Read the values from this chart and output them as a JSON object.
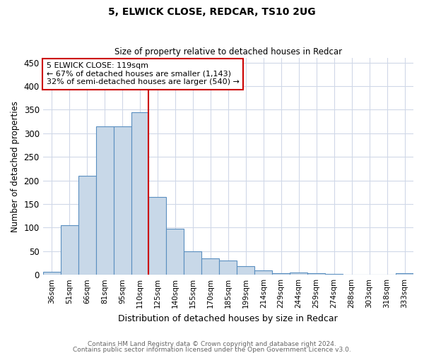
{
  "title1": "5, ELWICK CLOSE, REDCAR, TS10 2UG",
  "title2": "Size of property relative to detached houses in Redcar",
  "xlabel": "Distribution of detached houses by size in Redcar",
  "ylabel": "Number of detached properties",
  "categories": [
    "36sqm",
    "51sqm",
    "66sqm",
    "81sqm",
    "95sqm",
    "110sqm",
    "125sqm",
    "140sqm",
    "155sqm",
    "170sqm",
    "185sqm",
    "199sqm",
    "214sqm",
    "229sqm",
    "244sqm",
    "259sqm",
    "274sqm",
    "288sqm",
    "303sqm",
    "318sqm",
    "333sqm"
  ],
  "values": [
    6,
    105,
    210,
    315,
    315,
    345,
    165,
    97,
    50,
    35,
    30,
    18,
    10,
    4,
    5,
    4,
    2,
    1,
    1,
    1,
    3
  ],
  "bar_color": "#c8d8e8",
  "bar_edge_color": "#5a8fc0",
  "vline_x": 5.5,
  "vline_color": "#cc0000",
  "annotation_text": "5 ELWICK CLOSE: 119sqm\n← 67% of detached houses are smaller (1,143)\n32% of semi-detached houses are larger (540) →",
  "annotation_box_color": "#cc0000",
  "ylim": [
    0,
    460
  ],
  "yticks": [
    0,
    50,
    100,
    150,
    200,
    250,
    300,
    350,
    400,
    450
  ],
  "footer1": "Contains HM Land Registry data © Crown copyright and database right 2024.",
  "footer2": "Contains public sector information licensed under the Open Government Licence v3.0.",
  "bg_color": "#ffffff",
  "grid_color": "#d0d8e8"
}
